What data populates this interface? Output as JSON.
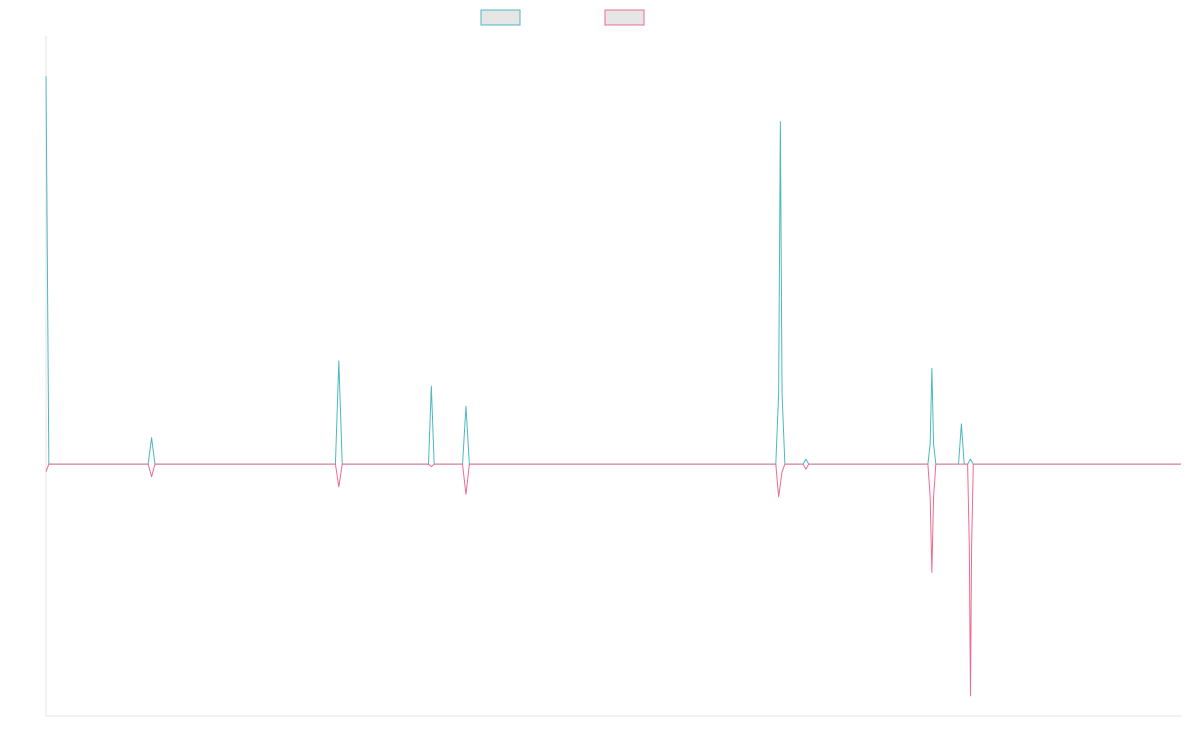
{
  "chart_data": {
    "type": "line",
    "title": "",
    "xlabel": "",
    "ylabel": "",
    "grid": false,
    "legend_position": "top-center",
    "xlim": [
      0,
      100
    ],
    "ylim": [
      -100,
      170
    ],
    "baseline": 0,
    "series": [
      {
        "color": "#4bb8bf",
        "points": [
          [
            0,
            154
          ],
          [
            0.25,
            0
          ],
          [
            9.0,
            0
          ],
          [
            9.3,
            10.5
          ],
          [
            9.6,
            0
          ],
          [
            25.5,
            0
          ],
          [
            25.8,
            41
          ],
          [
            26.1,
            0
          ],
          [
            33.7,
            0
          ],
          [
            33.95,
            31
          ],
          [
            34.2,
            0
          ],
          [
            36.7,
            0
          ],
          [
            37.0,
            23
          ],
          [
            37.3,
            0
          ],
          [
            64.3,
            0
          ],
          [
            64.55,
            28
          ],
          [
            64.7,
            136
          ],
          [
            64.85,
            28
          ],
          [
            65.1,
            0
          ],
          [
            66.7,
            0
          ],
          [
            66.95,
            2
          ],
          [
            67.2,
            0
          ],
          [
            77.7,
            0
          ],
          [
            77.9,
            8
          ],
          [
            78.05,
            38
          ],
          [
            78.2,
            8
          ],
          [
            78.4,
            0
          ],
          [
            80.4,
            0
          ],
          [
            80.65,
            16
          ],
          [
            80.9,
            0
          ],
          [
            81.2,
            0
          ],
          [
            81.45,
            2
          ],
          [
            81.7,
            0
          ],
          [
            100,
            0
          ]
        ]
      },
      {
        "color": "#ef6a8f",
        "points": [
          [
            0,
            -3
          ],
          [
            0.25,
            0
          ],
          [
            9.0,
            0
          ],
          [
            9.3,
            -5
          ],
          [
            9.6,
            0
          ],
          [
            25.5,
            0
          ],
          [
            25.8,
            -9
          ],
          [
            26.1,
            0
          ],
          [
            33.7,
            0
          ],
          [
            33.95,
            -1
          ],
          [
            34.2,
            0
          ],
          [
            36.7,
            0
          ],
          [
            37.0,
            -12
          ],
          [
            37.3,
            0
          ],
          [
            64.3,
            0
          ],
          [
            64.55,
            -13
          ],
          [
            64.85,
            -3
          ],
          [
            65.1,
            0
          ],
          [
            66.7,
            0
          ],
          [
            66.95,
            -2
          ],
          [
            67.2,
            0
          ],
          [
            77.7,
            0
          ],
          [
            77.9,
            -13
          ],
          [
            78.05,
            -43
          ],
          [
            78.2,
            -13
          ],
          [
            78.4,
            0
          ],
          [
            81.2,
            0
          ],
          [
            81.35,
            -33
          ],
          [
            81.45,
            -92
          ],
          [
            81.55,
            -33
          ],
          [
            81.7,
            0
          ],
          [
            100,
            0
          ]
        ]
      }
    ]
  }
}
